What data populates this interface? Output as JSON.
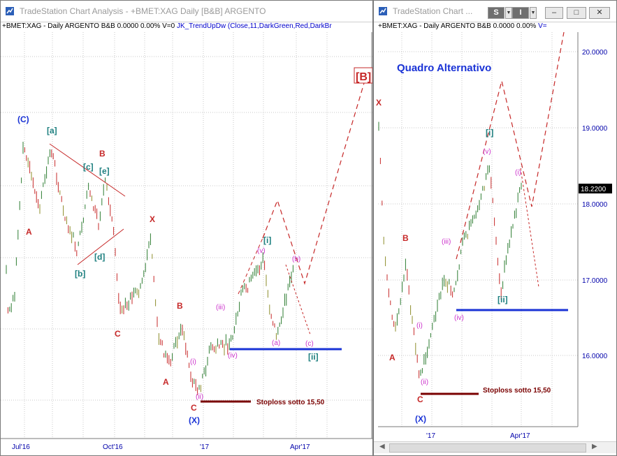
{
  "window_left": {
    "title": "TradeStation Chart Analysis - +BMET:XAG Daily [B&B] ARGENTO",
    "info": "+BMET:XAG - Daily  ARGENTO  B&B  0.0000  0.00%  V=0",
    "indicator": "JK_TrendUpDw (Close,11,DarkGreen,Red,DarkBr",
    "x_labels": [
      "Jul'16",
      "Oct'16",
      "'17",
      "Apr'17"
    ],
    "annotations": {
      "C_top": "(C)",
      "a_br": "[a]",
      "c_br": "[c]",
      "e_br": "[e]",
      "b_br": "[b]",
      "d_br": "[d]",
      "A1": "A",
      "B1": "B",
      "C1": "C",
      "X1": "X",
      "A2": "A",
      "B2": "B",
      "C2": "C",
      "X_bottom": "(X)",
      "i1": "(i)",
      "ii1": "(ii)",
      "iii1": "(iii)",
      "iv1": "(iv)",
      "v1": "(v)",
      "i_br": "[i]",
      "a1": "(a)",
      "b1": "(b)",
      "c1": "(c)",
      "ii_br": "[ii]",
      "B_big": "[B]",
      "stoploss": "Stoploss  sotto 15,50"
    }
  },
  "window_right": {
    "title": "TradeStation Chart ...",
    "buttons": {
      "s": "S",
      "i": "I"
    },
    "info": "+BMET:XAG - Daily  ARGENTO  B&B  0.0000  0.00%",
    "info_v": "V=",
    "x_labels": [
      "'17",
      "Apr'17"
    ],
    "y_labels": [
      "20.0000",
      "19.0000",
      "18.0000",
      "17.0000",
      "16.0000"
    ],
    "last_price": "18.2200",
    "annotations": {
      "title": "Quadro Alternativo",
      "X_top": "X",
      "B": "B",
      "A": "A",
      "C": "C",
      "X_bottom": "(X)",
      "i": "(i)",
      "ii": "(ii)",
      "iii": "(iii)",
      "iv": "(iv)",
      "v": "(v)",
      "i_br": "[i]",
      "ii_br": "[ii]",
      "i_top": "(i)",
      "stoploss": "Stoploss  sotto 15,50"
    }
  },
  "colors": {
    "green": "#2e7d32",
    "red": "#c62828",
    "olive": "#8d8d2a",
    "blue_line": "#1a33d6",
    "stop_line": "#7a0000",
    "magenta": "#cc33cc",
    "teal": "#1f8080"
  }
}
